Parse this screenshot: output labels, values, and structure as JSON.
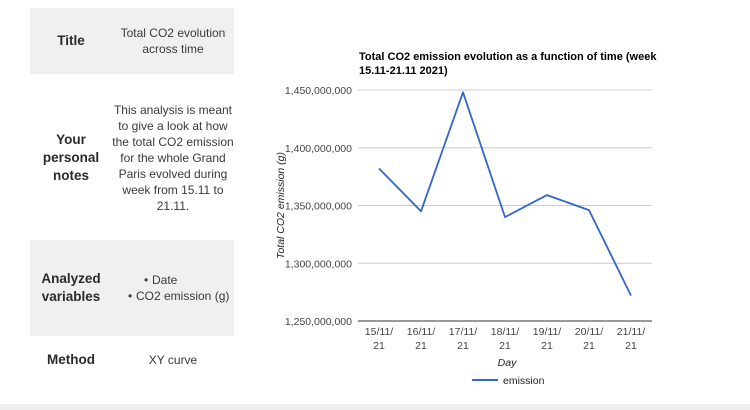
{
  "info_table": {
    "title": {
      "key": "Title",
      "value": "Total CO2 evolution across time"
    },
    "notes": {
      "key": "Your personal notes",
      "value": "This analysis is meant to give a look at how the total CO2 emission for the whole Grand Paris evolved during week from 15.11 to 21.11."
    },
    "variables": {
      "key": "Analyzed variables",
      "items": [
        "Date",
        "CO2 emission (g)"
      ]
    },
    "method": {
      "key": "Method",
      "value": "XY curve"
    }
  },
  "chart_data": {
    "type": "line",
    "title": "Total CO2 emission evolution as a function of time (week 15.11-21.11 2021)",
    "xlabel": "Day",
    "ylabel": "Total CO2 emission (g)",
    "categories": [
      "15/11/21",
      "16/11/21",
      "17/11/21",
      "18/11/21",
      "19/11/21",
      "20/11/21",
      "21/11/21"
    ],
    "series": [
      {
        "name": "emission",
        "values": [
          1382000000,
          1345000000,
          1448000000,
          1340000000,
          1359000000,
          1346000000,
          1272000000
        ]
      }
    ],
    "yticks": [
      "1,250,000,000",
      "1,300,000,000",
      "1,350,000,000",
      "1,400,000,000",
      "1,450,000,000"
    ],
    "ylim": [
      1250000000,
      1450000000
    ],
    "grid": true,
    "legend_position": "bottom",
    "colors": {
      "line": "#3366cc",
      "grid": "#cccccc"
    }
  }
}
